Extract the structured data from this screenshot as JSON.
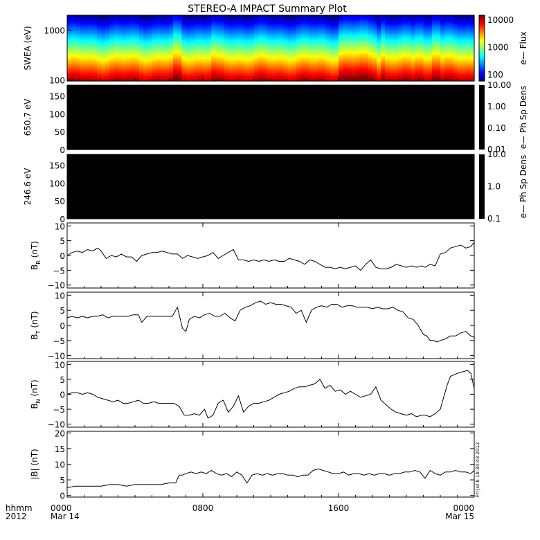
{
  "title": "STEREO-A IMPACT Summary Plot",
  "footer": {
    "hhmm": "hhmm",
    "year": "2012",
    "ticks": [
      {
        "hour": 0,
        "time": "0000",
        "date": "Mar 14"
      },
      {
        "hour": 8,
        "time": "0800",
        "date": ""
      },
      {
        "hour": 16,
        "time": "1600",
        "date": ""
      },
      {
        "hour": 24,
        "time": "0000",
        "date": "Mar 15"
      }
    ]
  },
  "timestamp": "Fri Jul  6 16:34:43 2012",
  "colors": {
    "trace": "#000000",
    "frame": "#000000",
    "background": "#ffffff"
  },
  "chart_data": [
    {
      "type": "heatmap",
      "id": "swea",
      "ylabel": "SWEA (eV)",
      "yscale": "log",
      "ylim": [
        95,
        2000
      ],
      "yticks": [
        {
          "v": 100,
          "t": "100"
        },
        {
          "v": 1000,
          "t": "1000"
        }
      ],
      "xlim": [
        0,
        24
      ],
      "colorbar": {
        "label": "e— Flux",
        "scale": "log",
        "range": [
          60,
          15000
        ],
        "ticks": [
          {
            "v": 100,
            "t": "100"
          },
          {
            "v": 1000,
            "t": "1000"
          },
          {
            "v": 10000,
            "t": "10000"
          }
        ]
      },
      "note": "energy spectrogram, high flux at low energy, enhanced near 06:30, 16:00-18:00, 21:30"
    },
    {
      "type": "heatmap",
      "id": "pad650",
      "ylabel": "650.7 eV",
      "ylim": [
        0,
        180
      ],
      "yticks": [
        {
          "v": 0,
          "t": "0"
        },
        {
          "v": 50,
          "t": "50"
        },
        {
          "v": 100,
          "t": "100"
        },
        {
          "v": 150,
          "t": "150"
        }
      ],
      "xlim": [
        0,
        24
      ],
      "fill": "#000000",
      "colorbar": {
        "label": "e— Ph Sp Dens",
        "scale": "log",
        "range": [
          0.01,
          10
        ],
        "ticks": [
          {
            "v": 10,
            "t": "10.00"
          },
          {
            "v": 1,
            "t": "1.00"
          },
          {
            "v": 0.1,
            "t": "0.10"
          },
          {
            "v": 0.01,
            "t": "0.01"
          }
        ]
      }
    },
    {
      "type": "heatmap",
      "id": "pad246",
      "ylabel": "246.6 eV",
      "ylim": [
        0,
        180
      ],
      "yticks": [
        {
          "v": 0,
          "t": "0"
        },
        {
          "v": 50,
          "t": "50"
        },
        {
          "v": 100,
          "t": "100"
        },
        {
          "v": 150,
          "t": "150"
        }
      ],
      "xlim": [
        0,
        24
      ],
      "fill": "#000000",
      "colorbar": {
        "label": "e— Ph Sp Dens",
        "scale": "log",
        "range": [
          0.1,
          10
        ],
        "ticks": [
          {
            "v": 10,
            "t": "10.0"
          },
          {
            "v": 1,
            "t": "1.0"
          },
          {
            "v": 0.1,
            "t": "0.1"
          }
        ]
      }
    },
    {
      "type": "line",
      "id": "br",
      "ylabel_main": "B",
      "ylabel_sub": "R",
      "ylabel_unit": "(nT)",
      "ylim": [
        -11,
        11
      ],
      "yticks": [
        {
          "v": -10,
          "t": "−10"
        },
        {
          "v": -5,
          "t": "−5"
        },
        {
          "v": 0,
          "t": "0"
        },
        {
          "v": 5,
          "t": "5"
        },
        {
          "v": 10,
          "t": "10"
        }
      ],
      "xlim": [
        0,
        24
      ],
      "x": [
        0,
        0.3,
        0.6,
        0.9,
        1.2,
        1.5,
        1.8,
        2.0,
        2.3,
        2.6,
        2.9,
        3.2,
        3.5,
        3.8,
        4.1,
        4.4,
        4.7,
        5.0,
        5.3,
        5.6,
        5.9,
        6.2,
        6.5,
        6.8,
        7.1,
        7.4,
        7.7,
        8.0,
        8.3,
        8.6,
        8.9,
        9.2,
        9.5,
        9.8,
        10.1,
        10.4,
        10.7,
        11.0,
        11.3,
        11.6,
        11.9,
        12.2,
        12.5,
        12.8,
        13.1,
        13.4,
        13.7,
        14.0,
        14.3,
        14.6,
        14.9,
        15.2,
        15.5,
        15.8,
        16.1,
        16.4,
        16.7,
        17.0,
        17.3,
        17.6,
        17.9,
        18.2,
        18.5,
        18.8,
        19.1,
        19.4,
        19.7,
        20.0,
        20.3,
        20.6,
        20.9,
        21.1,
        21.4,
        21.7,
        22.0,
        22.3,
        22.6,
        22.9,
        23.2,
        23.5,
        23.8,
        24.0
      ],
      "values": [
        0,
        1,
        1.5,
        1,
        2,
        1.5,
        2.5,
        1.5,
        -1,
        0,
        -0.5,
        0.5,
        -0.5,
        -0.5,
        -2,
        0,
        0.5,
        1,
        1,
        1.5,
        1,
        0.5,
        0.5,
        -1,
        0,
        -0.5,
        -1,
        -0.5,
        0,
        1,
        -1,
        0,
        1,
        2,
        -1.5,
        -1.5,
        -2,
        -1.5,
        -2,
        -1.5,
        -2,
        -1.5,
        -2,
        -2,
        -1,
        -1.5,
        -2,
        -3,
        -1.5,
        -2,
        -3,
        -4,
        -4,
        -4.5,
        -4,
        -4.5,
        -4,
        -3.5,
        -5,
        -3,
        -1.5,
        -4,
        -4.5,
        -4.5,
        -4,
        -3,
        -3.5,
        -4,
        -3.5,
        -4,
        -3.5,
        -4,
        -3,
        -3.5,
        0.5,
        1,
        2.5,
        3,
        3.5,
        2.5,
        3,
        4.5
      ]
    },
    {
      "type": "line",
      "id": "bt",
      "ylabel_main": "B",
      "ylabel_sub": "T",
      "ylabel_unit": "(nT)",
      "ylim": [
        -11,
        11
      ],
      "yticks": [
        {
          "v": -10,
          "t": "−10"
        },
        {
          "v": -5,
          "t": "−5"
        },
        {
          "v": 0,
          "t": "0"
        },
        {
          "v": 5,
          "t": "5"
        },
        {
          "v": 10,
          "t": "10"
        }
      ],
      "xlim": [
        0,
        24
      ],
      "x": [
        0,
        0.3,
        0.6,
        0.9,
        1.2,
        1.5,
        1.8,
        2.1,
        2.4,
        2.7,
        3.0,
        3.3,
        3.6,
        3.9,
        4.2,
        4.4,
        4.7,
        5.0,
        5.3,
        5.6,
        5.9,
        6.2,
        6.5,
        6.8,
        7.0,
        7.2,
        7.5,
        7.8,
        8.1,
        8.4,
        8.7,
        9.0,
        9.3,
        9.6,
        9.9,
        10.2,
        10.5,
        10.8,
        11.1,
        11.4,
        11.7,
        12.0,
        12.3,
        12.6,
        12.9,
        13.2,
        13.5,
        13.8,
        14.1,
        14.4,
        14.7,
        15.0,
        15.3,
        15.6,
        15.9,
        16.2,
        16.5,
        16.8,
        17.1,
        17.4,
        17.7,
        18.0,
        18.3,
        18.6,
        18.9,
        19.2,
        19.5,
        19.8,
        20.1,
        20.4,
        20.7,
        21.0,
        21.2,
        21.4,
        21.6,
        21.8,
        22.0,
        22.3,
        22.6,
        22.9,
        23.2,
        23.5,
        23.8,
        24.0
      ],
      "values": [
        2.5,
        3,
        2.5,
        3,
        2.5,
        3,
        3,
        3.5,
        2.5,
        3,
        3,
        3,
        3,
        3.5,
        3.5,
        1,
        3,
        3,
        3,
        3,
        3,
        3,
        6,
        -1,
        -2,
        2,
        3,
        2.5,
        3.5,
        4,
        3,
        3,
        4,
        2.5,
        1.5,
        5,
        6,
        6.5,
        7.5,
        8,
        7,
        7.5,
        7,
        7,
        6.5,
        6,
        4,
        5,
        1,
        5,
        6,
        6.5,
        6,
        7,
        7,
        6,
        6.5,
        6.5,
        6,
        6,
        6,
        5.5,
        6,
        5.5,
        5.5,
        6,
        5,
        4.5,
        2.5,
        2,
        0,
        -3,
        -3.5,
        -5,
        -5,
        -5.5,
        -5,
        -4.5,
        -3.5,
        -3.5,
        -2.5,
        -2,
        -3.5,
        -4
      ]
    },
    {
      "type": "line",
      "id": "bn",
      "ylabel_main": "B",
      "ylabel_sub": "N",
      "ylabel_unit": "(nT)",
      "ylim": [
        -11,
        11
      ],
      "yticks": [
        {
          "v": -10,
          "t": "−10"
        },
        {
          "v": -5,
          "t": "−5"
        },
        {
          "v": 0,
          "t": "0"
        },
        {
          "v": 5,
          "t": "5"
        },
        {
          "v": 10,
          "t": "10"
        }
      ],
      "xlim": [
        0,
        24
      ],
      "x": [
        0,
        0.3,
        0.6,
        0.9,
        1.2,
        1.5,
        1.8,
        2.1,
        2.4,
        2.7,
        3.0,
        3.3,
        3.6,
        3.9,
        4.2,
        4.5,
        4.8,
        5.1,
        5.4,
        5.7,
        6.0,
        6.3,
        6.6,
        6.9,
        7.2,
        7.5,
        7.8,
        8.1,
        8.3,
        8.6,
        8.9,
        9.2,
        9.5,
        9.8,
        10.1,
        10.4,
        10.7,
        11.0,
        11.3,
        11.6,
        11.9,
        12.2,
        12.5,
        12.8,
        13.1,
        13.4,
        13.7,
        14.0,
        14.3,
        14.6,
        14.9,
        15.2,
        15.5,
        15.8,
        16.1,
        16.4,
        16.7,
        17.0,
        17.3,
        17.6,
        17.9,
        18.2,
        18.5,
        18.8,
        19.1,
        19.4,
        19.7,
        20.0,
        20.3,
        20.6,
        20.9,
        21.1,
        21.4,
        21.7,
        22.0,
        22.2,
        22.4,
        22.6,
        22.8,
        23.0,
        23.3,
        23.6,
        23.8,
        24.0
      ],
      "values": [
        0,
        0.5,
        0.5,
        0,
        0.5,
        0,
        -1,
        -1.5,
        -2,
        -2.5,
        -2,
        -3,
        -3,
        -2.5,
        -2,
        -3,
        -3,
        -2.5,
        -3,
        -3,
        -3,
        -3,
        -4,
        -7,
        -7,
        -6.5,
        -7,
        -5,
        -8,
        -7,
        -3,
        -2,
        -6,
        -4,
        -0.5,
        -6,
        -4,
        -3,
        -3,
        -2.5,
        -2,
        -1,
        0,
        0.5,
        1,
        2,
        2.5,
        2.5,
        3,
        3.5,
        5,
        2,
        3,
        1,
        1.5,
        0,
        1,
        0,
        -1,
        -0.5,
        0,
        2.5,
        -2,
        -3.5,
        -5,
        -6,
        -6.5,
        -7,
        -6.5,
        -7.5,
        -7,
        -7,
        -7.5,
        -6.5,
        -5,
        -1,
        3,
        6,
        6.5,
        7,
        7.5,
        8,
        7,
        2
      ]
    },
    {
      "type": "line",
      "id": "bmag",
      "ylabel_main": "|B| (nT)",
      "ylim": [
        -0.5,
        20.5
      ],
      "yticks": [
        {
          "v": 0,
          "t": "0"
        },
        {
          "v": 5,
          "t": "5"
        },
        {
          "v": 10,
          "t": "10"
        },
        {
          "v": 15,
          "t": "15"
        },
        {
          "v": 20,
          "t": "20"
        }
      ],
      "xlim": [
        0,
        24
      ],
      "x": [
        0,
        0.5,
        1.0,
        1.5,
        2.0,
        2.5,
        3.0,
        3.5,
        4.0,
        4.5,
        5.0,
        5.5,
        6.0,
        6.4,
        6.6,
        6.8,
        7.0,
        7.3,
        7.6,
        7.9,
        8.2,
        8.5,
        8.8,
        9.1,
        9.4,
        9.7,
        10.0,
        10.3,
        10.6,
        10.9,
        11.2,
        11.5,
        11.8,
        12.1,
        12.4,
        12.7,
        13.0,
        13.3,
        13.6,
        13.9,
        14.2,
        14.5,
        14.8,
        15.1,
        15.4,
        15.7,
        16.0,
        16.3,
        16.6,
        16.9,
        17.2,
        17.5,
        17.8,
        18.1,
        18.4,
        18.7,
        19.0,
        19.3,
        19.6,
        19.9,
        20.2,
        20.5,
        20.8,
        21.1,
        21.4,
        21.7,
        22.0,
        22.3,
        22.6,
        22.9,
        23.2,
        23.5,
        23.8,
        24.0
      ],
      "values": [
        2.5,
        3,
        3,
        3,
        3,
        3.5,
        3.5,
        3,
        3.5,
        3.5,
        3.5,
        3.5,
        4,
        4,
        6.5,
        6.5,
        7,
        7.5,
        7,
        7.5,
        7,
        8,
        7,
        6.5,
        7,
        6,
        7.5,
        6.5,
        4,
        6.5,
        7,
        6.5,
        7,
        6.5,
        7,
        7,
        6.5,
        6.5,
        6,
        6.5,
        6.5,
        8,
        8.5,
        8,
        7.5,
        7,
        7,
        7.5,
        6.5,
        7,
        7,
        6.5,
        7,
        6.5,
        7,
        7,
        6.5,
        7,
        7,
        7.5,
        7.5,
        8,
        7.5,
        5.5,
        8,
        7,
        6.5,
        7.5,
        7.5,
        8,
        7.5,
        7.5,
        7,
        8
      ]
    }
  ]
}
